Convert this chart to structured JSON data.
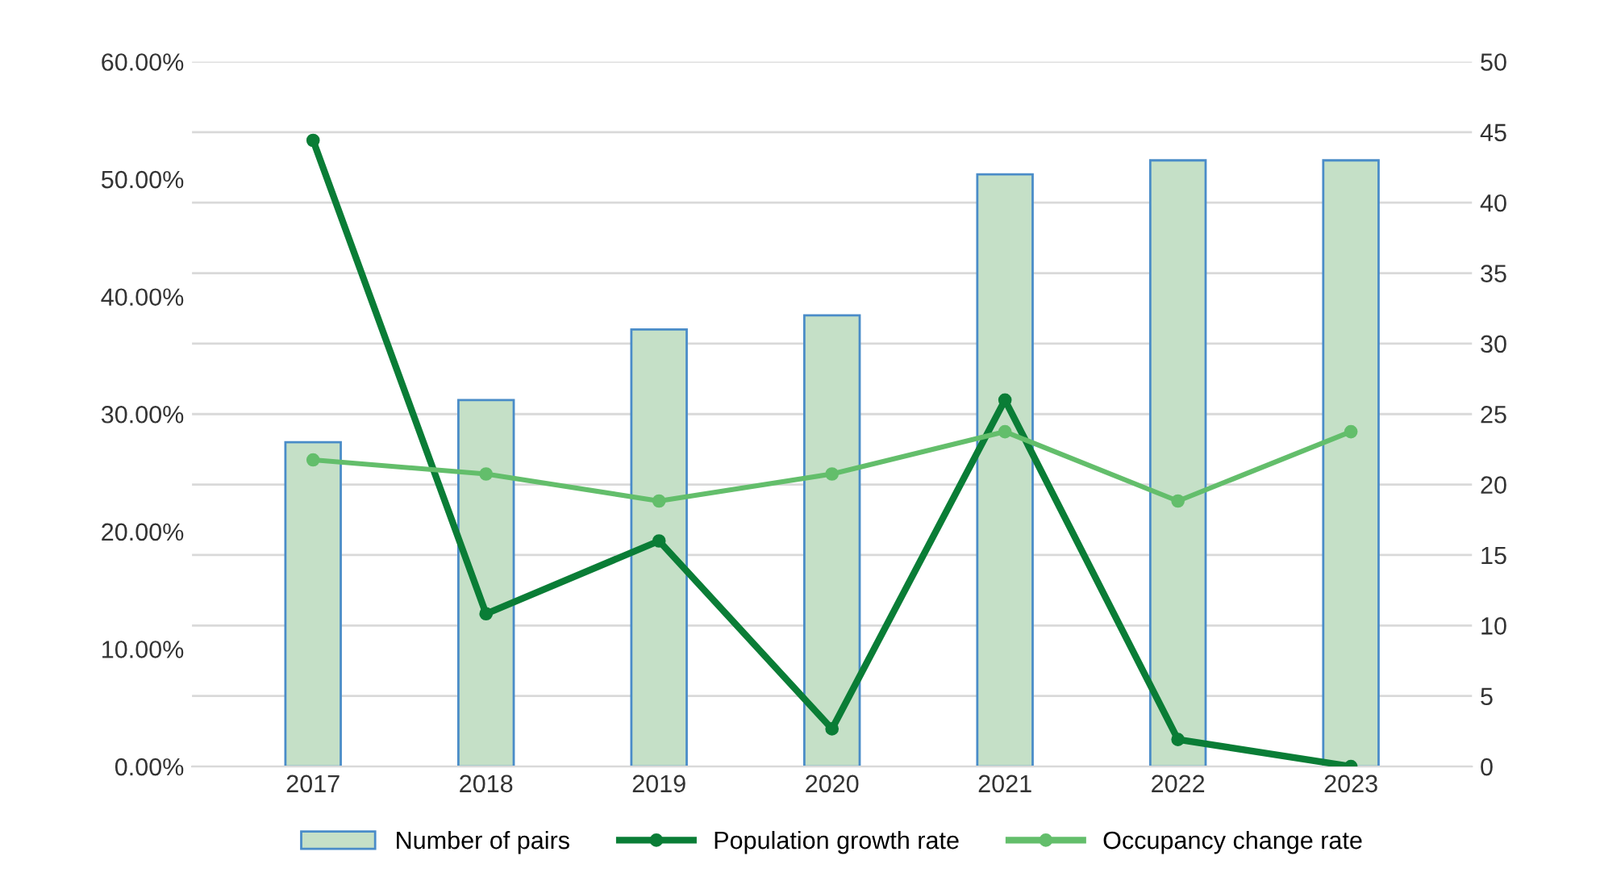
{
  "chart_data": {
    "type": "bar",
    "categories": [
      "2017",
      "2018",
      "2019",
      "2020",
      "2021",
      "2022",
      "2023"
    ],
    "series": [
      {
        "name": "Number of pairs",
        "axis": "y2",
        "color": "#c5e0c7",
        "values": [
          23,
          26,
          31,
          32,
          42,
          43,
          43
        ]
      },
      {
        "name": "Population growth rate",
        "type": "line",
        "color": "#0a7d36",
        "values": [
          53.3,
          13.0,
          19.2,
          3.2,
          31.2,
          2.3,
          0
        ]
      },
      {
        "name": "Occupancy change rate",
        "type": "line",
        "color": "#63be6b",
        "values": [
          26.1,
          24.9,
          22.6,
          24.9,
          28.5,
          22.6,
          28.5
        ]
      }
    ],
    "ylim": [
      0,
      60
    ],
    "yticks": [
      {
        "value": 0,
        "label": "0.00%"
      },
      {
        "value": 10,
        "label": "10.00%"
      },
      {
        "value": 20,
        "label": "20.00%"
      },
      {
        "value": 30,
        "label": "30.00%"
      },
      {
        "value": 40,
        "label": "40.00%"
      },
      {
        "value": 50,
        "label": "50.00%"
      },
      {
        "value": 60,
        "label": "60.00%"
      }
    ],
    "y2lim": [
      0,
      50
    ],
    "y2ticks": [
      0,
      5,
      10,
      15,
      20,
      25,
      30,
      35,
      40,
      45,
      50
    ],
    "grid": "y",
    "legend": "bottom",
    "marker": "circle",
    "line_style": "solid"
  }
}
